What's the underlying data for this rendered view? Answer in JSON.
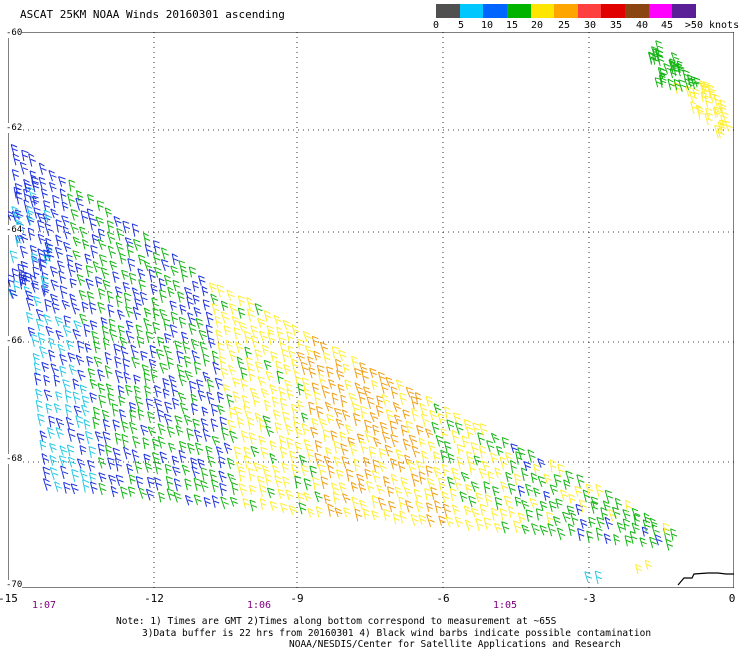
{
  "title": "ASCAT 25KM NOAA Winds 20160301 ascending",
  "colorbar": {
    "labels": [
      "0",
      "5",
      "10",
      "15",
      "20",
      "25",
      "30",
      "35",
      "40",
      "45",
      ">50 knots"
    ],
    "colors": [
      "#505050",
      "#00c8ff",
      "#0064ff",
      "#00b400",
      "#ffe600",
      "#ffa500",
      "#ff4040",
      "#e00000",
      "#8b4513",
      "#ff00ff",
      "#5a1e96"
    ]
  },
  "lat_labels": [
    "-60",
    "-62",
    "-64",
    "-66",
    "-68",
    "-70"
  ],
  "lon_labels": [
    "-15",
    "-12",
    "-9",
    "-6",
    "-3",
    "0"
  ],
  "time_labels": [
    "1:07",
    "1:06",
    "1:05"
  ],
  "notes": {
    "line1": "Note: 1) Times are GMT 2)Times along bottom correspond to measurement at ~65S",
    "line2": "3)Data buffer is 22 hrs from 20160301 4) Black wind barbs indicate possible contamination",
    "line3": "NOAA/NESDIS/Center for Satellite Applications and Research"
  },
  "barb_colors": {
    "blue": "#1e32dc",
    "cyan": "#28c8e6",
    "green": "#14b414",
    "yellow": "#ffee32",
    "orange": "#f0a014",
    "black": "#000000"
  }
}
